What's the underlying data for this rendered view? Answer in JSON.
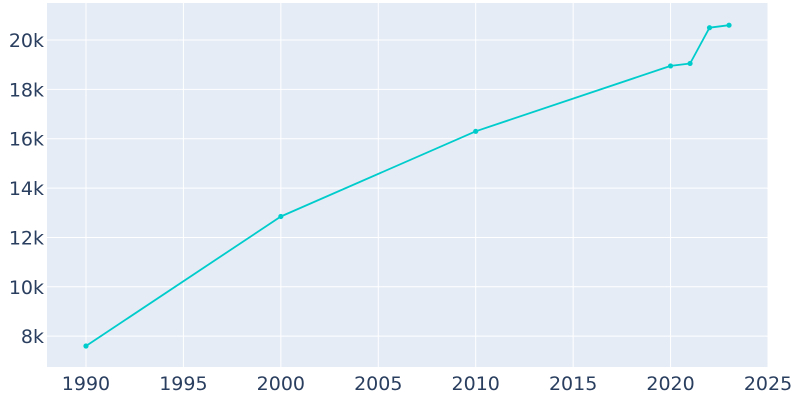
{
  "chart_data": {
    "type": "line",
    "title": "",
    "xlabel": "",
    "ylabel": "",
    "xlim": [
      1988,
      2025
    ],
    "ylim": [
      6750,
      21500
    ],
    "grid": true,
    "x_ticks": [
      1990,
      1995,
      2000,
      2005,
      2010,
      2015,
      2020,
      2025
    ],
    "x_tick_labels": [
      "1990",
      "1995",
      "2000",
      "2005",
      "2010",
      "2015",
      "2020",
      "2025"
    ],
    "y_ticks": [
      8000,
      10000,
      12000,
      14000,
      16000,
      18000,
      20000
    ],
    "y_tick_labels": [
      "8k",
      "10k",
      "12k",
      "14k",
      "16k",
      "18k",
      "20k"
    ],
    "series": [
      {
        "x": [
          1990,
          2000,
          2010,
          2020,
          2021,
          2022,
          2023
        ],
        "y": [
          7600,
          12850,
          16300,
          18950,
          19050,
          20500,
          20600
        ]
      }
    ],
    "colors": {
      "plot_background": "#e5ecf6",
      "grid": "#ffffff",
      "line": "#00cccc",
      "tick_text": "#2a3f5f"
    }
  }
}
